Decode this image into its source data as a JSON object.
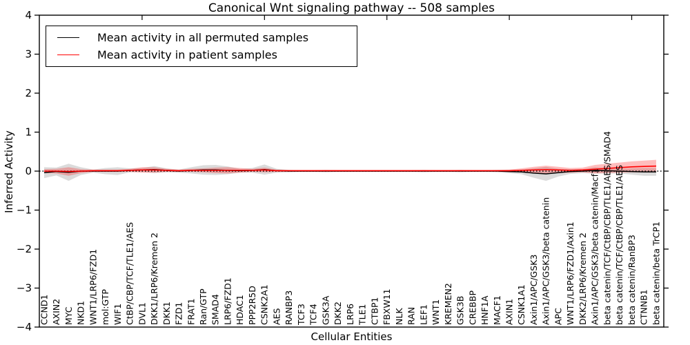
{
  "chart_data": {
    "type": "line",
    "title": "Canonical Wnt signaling pathway -- 508 samples",
    "xlabel": "Cellular Entities",
    "ylabel": "Inferred Activity",
    "ylim": [
      -4,
      4
    ],
    "yticks": [
      4,
      3,
      2,
      1,
      0,
      -1,
      -2,
      -3,
      -4
    ],
    "grid": false,
    "zero_line": {
      "style": "dotted",
      "color": "#000000",
      "y": 0
    },
    "legend": {
      "position": "upper left",
      "entries": [
        {
          "label": "Mean activity in all permuted samples",
          "color": "#000000"
        },
        {
          "label": "Mean activity in patient samples",
          "color": "#ff0000"
        }
      ]
    },
    "categories": [
      "CCND1",
      "AXIN2",
      "MYC",
      "NKD1",
      "WNT1/LRP6/FZD1",
      "mol:GTP",
      "WIF1",
      "CtBP/CBP/TCF/TLE1/AES",
      "DVL1",
      "DKK1/LRP6/Kremen 2",
      "DKK1",
      "FZD1",
      "FRAT1",
      "Ran/GTP",
      "SMAD4",
      "LRP6/FZD1",
      "HDAC1",
      "PPP2R5D",
      "CSNK2A1",
      "AES",
      "RANBP3",
      "TCF3",
      "TCF4",
      "GSK3A",
      "DKK2",
      "LRP6",
      "TLE1",
      "CTBP1",
      "FBXW11",
      "NLK",
      "RAN",
      "LEF1",
      "WNT1",
      "KREMEN2",
      "GSK3B",
      "CREBBP",
      "HNF1A",
      "MACF1",
      "AXIN1",
      "CSNK1A1",
      "Axin1/APC/GSK3",
      "Axin1/APC/GSK3/beta catenin",
      "APC",
      "WNT1/LRP6/FZD1/Axin1",
      "DKK2/LRP6/Kremen 2",
      "Axin1/APC/GSK3/beta catenin/Macf1",
      "beta catenin/TCF/CtBP/CBP/TLE1/AES/SMAD4",
      "beta catenin/TCF/CtBP/CBP/TLE1/AES",
      "beta catenin/RanBP3",
      "CTNNB1",
      "beta catenin/beta TrCP1"
    ],
    "series": [
      {
        "name": "Mean activity in all permuted samples",
        "color": "#000000",
        "band_color": "rgba(0,0,0,0.14)",
        "values": [
          -0.04,
          -0.01,
          -0.03,
          0,
          0,
          0,
          0,
          0.02,
          0.03,
          0.04,
          0.02,
          0,
          0.02,
          0.03,
          0.03,
          0.02,
          0.01,
          0.02,
          0.04,
          0.01,
          0,
          0,
          0,
          0,
          0,
          0,
          0,
          0,
          0,
          0,
          0,
          0,
          0,
          0,
          0,
          0,
          0,
          0,
          -0.01,
          -0.02,
          -0.05,
          -0.07,
          -0.04,
          -0.01,
          0,
          0.02,
          0.01,
          0,
          -0.01,
          -0.02,
          -0.02
        ],
        "band": [
          0.14,
          0.1,
          0.22,
          0.1,
          0.04,
          0.08,
          0.1,
          0.05,
          0.05,
          0.09,
          0.05,
          0.04,
          0.08,
          0.12,
          0.13,
          0.1,
          0.05,
          0.06,
          0.13,
          0.05,
          0.03,
          0.02,
          0.02,
          0.03,
          0.02,
          0.02,
          0.02,
          0.02,
          0.02,
          0.02,
          0.02,
          0.03,
          0.02,
          0.02,
          0.03,
          0.02,
          0.02,
          0.03,
          0.04,
          0.06,
          0.12,
          0.18,
          0.1,
          0.06,
          0.05,
          0.08,
          0.07,
          0.06,
          0.08,
          0.1,
          0.1
        ]
      },
      {
        "name": "Mean activity in patient samples",
        "color": "#ff0000",
        "band_color": "rgba(255,0,0,0.26)",
        "values": [
          0,
          0,
          -0.01,
          0,
          0.01,
          0.01,
          0.01,
          0.02,
          0.03,
          0.03,
          0.02,
          0.01,
          0.02,
          0.02,
          0.02,
          0.02,
          0.02,
          0.02,
          0.03,
          0.01,
          0.01,
          0.01,
          0.01,
          0.01,
          0.01,
          0.01,
          0.01,
          0.01,
          0.01,
          0.01,
          0.01,
          0.01,
          0.01,
          0.01,
          0.01,
          0.01,
          0.01,
          0.01,
          0.01,
          0.02,
          0.03,
          0.04,
          0.03,
          0.02,
          0.03,
          0.05,
          0.07,
          0.09,
          0.11,
          0.12,
          0.13
        ],
        "band": [
          0.05,
          0.06,
          0.11,
          0.05,
          0.03,
          0.03,
          0.03,
          0.04,
          0.07,
          0.07,
          0.04,
          0.03,
          0.04,
          0.05,
          0.07,
          0.08,
          0.06,
          0.04,
          0.06,
          0.03,
          0.02,
          0.02,
          0.02,
          0.02,
          0.02,
          0.02,
          0.02,
          0.02,
          0.02,
          0.02,
          0.02,
          0.02,
          0.02,
          0.02,
          0.02,
          0.02,
          0.02,
          0.02,
          0.03,
          0.05,
          0.08,
          0.1,
          0.08,
          0.06,
          0.06,
          0.11,
          0.12,
          0.13,
          0.14,
          0.15,
          0.16
        ]
      }
    ]
  }
}
